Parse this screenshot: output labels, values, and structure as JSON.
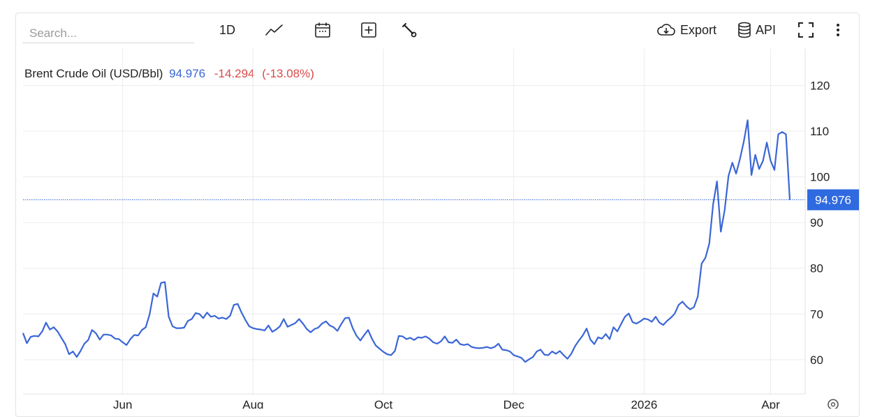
{
  "toolbar": {
    "search_placeholder": "Search...",
    "period_label": "1D",
    "chart_type_icon": "line-chart-icon",
    "calendar_icon": "calendar-icon",
    "add_icon": "plus-square-icon",
    "settings_icon": "wrench-icon",
    "export_label": "Export",
    "api_label": "API",
    "fullscreen_icon": "fullscreen-icon",
    "more_icon": "vertical-dots-icon"
  },
  "legend": {
    "name": "Brent Crude Oil (USD/Bbl)",
    "price": "94.976",
    "change": "-14.294",
    "change_pct": "(-13.08%)"
  },
  "colors": {
    "line": "#3a66d6",
    "positive_price": "#3a66d6",
    "negative_change": "#d94a4a",
    "last_tag": "#2f6ae0",
    "grid": "#ececec"
  },
  "chart_data": {
    "type": "line",
    "title": "Brent Crude Oil (USD/Bbl)",
    "xlabel": "",
    "ylabel": "",
    "ylim": [
      52.5,
      128
    ],
    "y_ticks": [
      60,
      70,
      80,
      90,
      100,
      110,
      120
    ],
    "x_ticks": [
      "Jun",
      "Aug",
      "Oct",
      "Dec",
      "2026",
      "Apr"
    ],
    "x_tick_index": [
      26,
      60,
      94,
      128,
      162,
      195
    ],
    "last_value_label": "94.976",
    "grid": true,
    "series": [
      {
        "name": "Brent Crude Oil (USD/Bbl)",
        "values": [
          65.8,
          63.6,
          65.0,
          65.2,
          65.1,
          66.2,
          68.1,
          66.6,
          67.1,
          66.2,
          64.8,
          63.4,
          61.2,
          61.8,
          60.6,
          61.9,
          63.5,
          64.3,
          66.5,
          65.8,
          64.4,
          65.5,
          65.5,
          65.3,
          64.6,
          64.5,
          63.8,
          63.2,
          64.5,
          65.4,
          65.3,
          66.5,
          67.1,
          69.9,
          74.5,
          73.8,
          76.8,
          77.0,
          69.4,
          67.3,
          66.9,
          66.9,
          67.0,
          68.5,
          68.9,
          70.2,
          70.0,
          69.1,
          70.3,
          69.4,
          69.6,
          69.0,
          69.2,
          68.9,
          69.6,
          72.0,
          72.2,
          70.3,
          68.7,
          67.3,
          66.9,
          66.7,
          66.6,
          66.4,
          67.5,
          66.1,
          66.6,
          67.3,
          68.9,
          67.2,
          67.6,
          68.0,
          68.9,
          67.9,
          66.7,
          66.0,
          66.7,
          67.0,
          67.9,
          68.4,
          67.5,
          67.1,
          66.3,
          67.8,
          69.1,
          69.2,
          66.9,
          65.2,
          64.2,
          65.4,
          66.5,
          64.6,
          63.1,
          62.4,
          61.7,
          61.2,
          61.0,
          61.9,
          65.2,
          65.1,
          64.5,
          64.8,
          64.3,
          64.9,
          64.8,
          65.1,
          64.6,
          63.8,
          63.5,
          64.0,
          65.1,
          63.8,
          63.7,
          64.4,
          63.4,
          63.2,
          63.4,
          62.8,
          62.6,
          62.5,
          62.6,
          62.8,
          62.5,
          62.8,
          63.5,
          62.2,
          62.1,
          61.8,
          61.0,
          60.7,
          60.4,
          59.5,
          60.1,
          60.6,
          61.8,
          62.2,
          61.1,
          61.0,
          61.8,
          61.3,
          61.9,
          61.0,
          60.2,
          61.3,
          63.0,
          64.2,
          65.3,
          66.8,
          64.4,
          63.4,
          64.9,
          64.6,
          65.6,
          64.5,
          67.1,
          66.2,
          67.8,
          69.4,
          70.1,
          68.2,
          67.9,
          68.4,
          69.0,
          68.8,
          68.3,
          69.4,
          68.1,
          67.6,
          68.5,
          69.2,
          70.1,
          72.0,
          72.7,
          71.7,
          71.0,
          71.5,
          73.8,
          81.0,
          82.3,
          85.4,
          94.0,
          99.0,
          88.0,
          92.7,
          100.2,
          103.1,
          100.7,
          103.9,
          107.7,
          112.4,
          100.4,
          104.8,
          101.7,
          103.5,
          107.5,
          103.5,
          101.5,
          109.3,
          109.8,
          109.3,
          94.976
        ]
      }
    ]
  }
}
